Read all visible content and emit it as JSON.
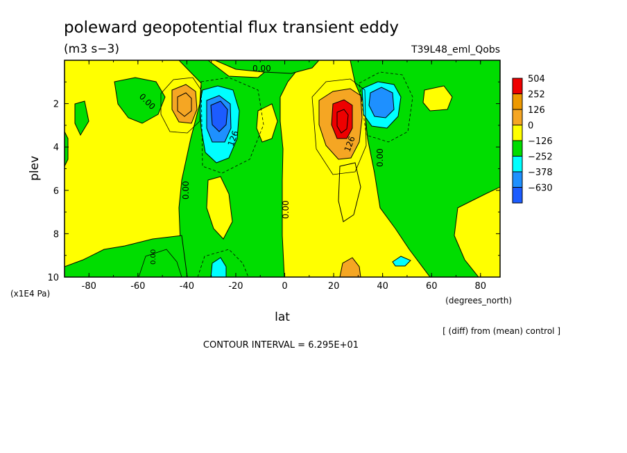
{
  "chart_data": {
    "type": "heatmap",
    "title": "poleward geopotential flux transient eddy",
    "units": "(m3 s−3)",
    "run_label": "T39L48_eml_Qobs",
    "xlabel": "lat",
    "xunits": "(degrees_north)",
    "ylabel": "plev",
    "yunits": "(x1E4 Pa)",
    "xlim": [
      -90,
      88
    ],
    "ylim": [
      0,
      10
    ],
    "y_inverted": true,
    "x_ticks": [
      -80,
      -60,
      -40,
      -20,
      0,
      20,
      40,
      60,
      80
    ],
    "y_ticks": [
      2,
      4,
      6,
      8,
      10
    ],
    "legend": {
      "placement": "right",
      "levels": [
        "504",
        "252",
        "126",
        "0",
        "−126",
        "−252",
        "−378",
        "−630"
      ],
      "colors": [
        "#ee0000",
        "#ee9900",
        "#f5a623",
        "#ffff00",
        "#00dd00",
        "#00ffff",
        "#1e90ff",
        "#1c5cff"
      ]
    },
    "contour_labels": [
      "0.00",
      "0.00",
      "0.00",
      "0.00",
      "0.00",
      "0.00",
      "126",
      "126"
    ],
    "contour_interval": "CONTOUR INTERVAL = 6.295E+01",
    "comparison_note": "[ (diff) from (mean) control ]",
    "features": [
      {
        "name": "positive max SH",
        "lat": -38,
        "plev": 2.0,
        "value": 189
      },
      {
        "name": "negative min SH",
        "lat": -26,
        "plev": 2.8,
        "value": -420
      },
      {
        "name": "positive max NH",
        "lat": 25,
        "plev": 2.8,
        "value": 400
      },
      {
        "name": "negative min NH",
        "lat": 40,
        "plev": 2.0,
        "value": -320
      }
    ]
  }
}
